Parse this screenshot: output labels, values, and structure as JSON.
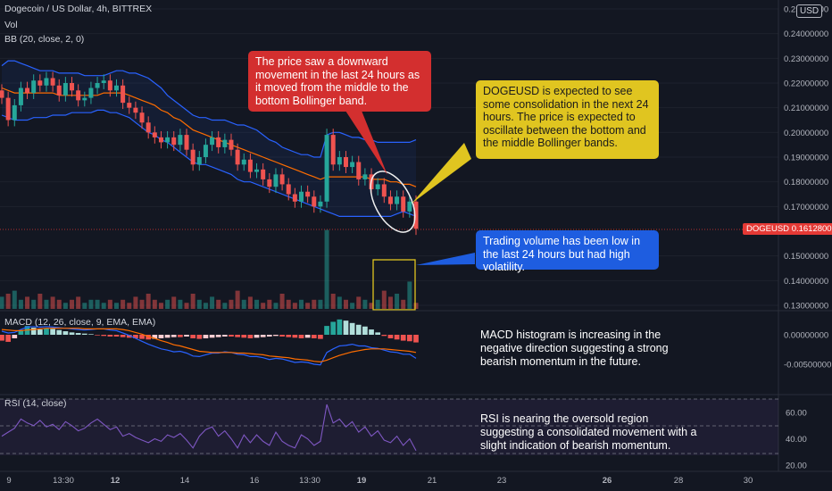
{
  "header": {
    "symbol_line": "Dogecoin / US Dollar, 4h, BITTREX",
    "vol_label": "Vol",
    "bb_label": "BB (20, close, 2, 0)",
    "macd_label": "MACD (12, 26, close, 9, EMA, EMA)",
    "rsi_label": "RSI (14, close)"
  },
  "currency_badge": "USD",
  "price_tag": {
    "symbol": "DOGEUSD",
    "value": "0.16128000"
  },
  "colors": {
    "background": "#131722",
    "up": "#26a69a",
    "down": "#ef5350",
    "bb_band": "#2962ff",
    "bb_basis": "#ff6d00",
    "macd_line": "#2962ff",
    "signal_line": "#ff6d00",
    "rsi_line": "#7e57c2",
    "callout_red": "#d32f2f",
    "callout_yellow": "#e0c520",
    "callout_blue": "#1e5de0"
  },
  "callouts": {
    "red": "The price saw a downward movement in the last 24 hours as it moved from the middle to the bottom Bollinger band.",
    "yellow": "DOGEUSD is expected to see some consolidation in the next 24 hours. The price is expected to oscillate between the bottom and the middle Bollinger bands.",
    "blue": "Trading volume has been low in the last 24 hours but had high volatility."
  },
  "notes": {
    "macd": "MACD histogram is increasing in the negative direction suggesting a strong bearish momentum in the future.",
    "rsi": "RSI is nearing the oversold region suggesting a consolidated movement with a slight indication of bearish momentum."
  },
  "chart_data": {
    "type": "line",
    "title": "Dogecoin / US Dollar, 4h, BITTREX",
    "price_axis": {
      "ticks": [
        "0.25000000",
        "0.24000000",
        "0.23000000",
        "0.22000000",
        "0.21000000",
        "0.20000000",
        "0.19000000",
        "0.18000000",
        "0.17000000",
        "0.15000000",
        "0.14000000",
        "0.13000000"
      ],
      "ylim": [
        0.13,
        0.25
      ],
      "last_price": 0.16128
    },
    "time_axis": [
      "9",
      "13:30",
      "12",
      "14",
      "16",
      "13:30",
      "19",
      "21",
      "23",
      "26",
      "28",
      "30"
    ],
    "price_close": [
      0.214,
      0.205,
      0.211,
      0.218,
      0.216,
      0.221,
      0.219,
      0.222,
      0.219,
      0.215,
      0.22,
      0.217,
      0.213,
      0.214,
      0.218,
      0.22,
      0.221,
      0.217,
      0.219,
      0.212,
      0.21,
      0.208,
      0.204,
      0.2,
      0.198,
      0.196,
      0.198,
      0.195,
      0.199,
      0.193,
      0.187,
      0.19,
      0.195,
      0.198,
      0.194,
      0.197,
      0.193,
      0.187,
      0.189,
      0.184,
      0.185,
      0.181,
      0.178,
      0.183,
      0.179,
      0.175,
      0.172,
      0.176,
      0.174,
      0.17,
      0.172,
      0.199,
      0.187,
      0.19,
      0.186,
      0.188,
      0.181,
      0.183,
      0.177,
      0.179,
      0.174,
      0.171,
      0.174,
      0.168,
      0.172,
      0.161
    ],
    "bb_upper": [
      0.227,
      0.229,
      0.229,
      0.228,
      0.227,
      0.226,
      0.225,
      0.225,
      0.225,
      0.224,
      0.224,
      0.224,
      0.224,
      0.223,
      0.223,
      0.223,
      0.223,
      0.224,
      0.225,
      0.225,
      0.224,
      0.224,
      0.223,
      0.222,
      0.22,
      0.218,
      0.215,
      0.213,
      0.211,
      0.209,
      0.207,
      0.206,
      0.206,
      0.205,
      0.205,
      0.205,
      0.204,
      0.203,
      0.203,
      0.202,
      0.201,
      0.199,
      0.197,
      0.196,
      0.194,
      0.193,
      0.192,
      0.191,
      0.191,
      0.19,
      0.19,
      0.199,
      0.2,
      0.2,
      0.199,
      0.198,
      0.198,
      0.197,
      0.197,
      0.196,
      0.196,
      0.196,
      0.196,
      0.196,
      0.196,
      0.197
    ],
    "bb_basis": [
      0.218,
      0.217,
      0.216,
      0.216,
      0.216,
      0.216,
      0.216,
      0.216,
      0.216,
      0.215,
      0.215,
      0.215,
      0.215,
      0.215,
      0.215,
      0.215,
      0.216,
      0.216,
      0.216,
      0.216,
      0.215,
      0.214,
      0.213,
      0.212,
      0.211,
      0.209,
      0.208,
      0.206,
      0.205,
      0.203,
      0.201,
      0.2,
      0.199,
      0.198,
      0.197,
      0.196,
      0.195,
      0.194,
      0.193,
      0.192,
      0.191,
      0.19,
      0.189,
      0.188,
      0.187,
      0.186,
      0.185,
      0.184,
      0.183,
      0.182,
      0.181,
      0.182,
      0.182,
      0.182,
      0.182,
      0.182,
      0.182,
      0.182,
      0.181,
      0.181,
      0.181,
      0.18,
      0.18,
      0.179,
      0.179,
      0.178
    ],
    "bb_lower": [
      0.207,
      0.206,
      0.205,
      0.205,
      0.205,
      0.206,
      0.206,
      0.206,
      0.207,
      0.207,
      0.207,
      0.208,
      0.208,
      0.208,
      0.208,
      0.209,
      0.209,
      0.208,
      0.208,
      0.207,
      0.206,
      0.204,
      0.202,
      0.2,
      0.199,
      0.197,
      0.196,
      0.194,
      0.192,
      0.19,
      0.188,
      0.187,
      0.187,
      0.186,
      0.185,
      0.184,
      0.183,
      0.181,
      0.18,
      0.18,
      0.179,
      0.178,
      0.177,
      0.176,
      0.175,
      0.174,
      0.173,
      0.172,
      0.171,
      0.17,
      0.169,
      0.168,
      0.167,
      0.166,
      0.166,
      0.166,
      0.166,
      0.166,
      0.166,
      0.166,
      0.166,
      0.166,
      0.167,
      0.168,
      0.167,
      0.166
    ],
    "volume": [
      0.4,
      0.5,
      0.6,
      0.3,
      0.4,
      0.3,
      0.5,
      0.3,
      0.4,
      0.3,
      0.2,
      0.3,
      0.4,
      0.2,
      0.3,
      0.3,
      0.2,
      0.3,
      0.2,
      0.3,
      0.2,
      0.4,
      0.3,
      0.5,
      0.3,
      0.2,
      0.3,
      0.4,
      0.3,
      0.2,
      0.5,
      0.3,
      0.2,
      0.4,
      0.3,
      0.2,
      0.3,
      0.6,
      0.3,
      0.4,
      0.3,
      0.2,
      0.3,
      0.2,
      0.5,
      0.3,
      0.2,
      0.3,
      0.2,
      0.3,
      0.3,
      2.6,
      0.5,
      0.4,
      0.3,
      0.2,
      0.4,
      0.3,
      0.2,
      0.3,
      0.6,
      0.4,
      0.5,
      0.3,
      0.9,
      0.2
    ],
    "macd_axis": {
      "ticks": [
        "0.00000000",
        "-0.00500000"
      ]
    },
    "macd_hist": [
      -1.0,
      -1.2,
      -0.6,
      0.8,
      1.5,
      1.2,
      0.9,
      1.1,
      1.0,
      0.8,
      0.6,
      0.4,
      0.3,
      0.2,
      0.1,
      -0.1,
      -0.2,
      -0.3,
      -0.3,
      -0.4,
      -0.5,
      -0.6,
      -0.7,
      -0.8,
      -0.7,
      -0.6,
      -0.5,
      -0.4,
      -0.4,
      -0.3,
      -0.6,
      -0.7,
      -0.6,
      -0.5,
      -0.4,
      -0.3,
      -0.3,
      -0.4,
      -0.5,
      -0.6,
      -0.5,
      -0.4,
      -0.3,
      -0.2,
      -0.3,
      -0.4,
      -0.5,
      -0.6,
      -0.5,
      -0.6,
      -0.7,
      1.5,
      2.2,
      2.6,
      2.4,
      2.0,
      1.7,
      1.4,
      0.9,
      0.4,
      -0.2,
      -0.6,
      -0.8,
      -1.0,
      -1.1,
      -1.3
    ],
    "macd_line": [
      0.6,
      0.3,
      0.4,
      0.9,
      1.3,
      1.4,
      1.3,
      1.4,
      1.3,
      1.2,
      1.1,
      1.0,
      0.9,
      0.8,
      0.9,
      1.0,
      1.0,
      0.8,
      0.7,
      0.3,
      -0.1,
      -0.6,
      -1.1,
      -1.6,
      -2.0,
      -2.4,
      -2.6,
      -2.9,
      -2.8,
      -3.1,
      -3.6,
      -3.7,
      -3.4,
      -3.1,
      -3.1,
      -2.9,
      -3.0,
      -3.3,
      -3.4,
      -3.7,
      -3.7,
      -3.9,
      -4.2,
      -4.0,
      -4.1,
      -4.4,
      -4.7,
      -4.6,
      -4.7,
      -5.0,
      -5.1,
      -3.0,
      -2.4,
      -1.9,
      -1.8,
      -1.6,
      -1.9,
      -1.9,
      -2.2,
      -2.3,
      -2.6,
      -2.9,
      -3.0,
      -3.3,
      -3.3,
      -4.0
    ],
    "macd_signal": [
      0.9,
      0.8,
      0.7,
      0.7,
      0.8,
      0.9,
      1.0,
      1.1,
      1.1,
      1.1,
      1.1,
      1.1,
      1.1,
      1.0,
      1.0,
      1.0,
      1.0,
      1.0,
      1.0,
      0.9,
      0.7,
      0.4,
      0.1,
      -0.3,
      -0.6,
      -1.0,
      -1.3,
      -1.7,
      -1.9,
      -2.2,
      -2.5,
      -2.8,
      -2.9,
      -3.0,
      -3.0,
      -3.0,
      -3.0,
      -3.1,
      -3.1,
      -3.2,
      -3.3,
      -3.4,
      -3.6,
      -3.7,
      -3.8,
      -3.9,
      -4.1,
      -4.2,
      -4.3,
      -4.5,
      -4.6,
      -4.3,
      -3.9,
      -3.5,
      -3.2,
      -2.9,
      -2.7,
      -2.5,
      -2.4,
      -2.4,
      -2.4,
      -2.5,
      -2.6,
      -2.7,
      -2.8,
      -3.0
    ],
    "rsi_axis": {
      "ticks": [
        "60.00",
        "40.00",
        "20.00"
      ],
      "ylim": [
        20,
        70
      ]
    },
    "rsi": [
      42,
      45,
      48,
      55,
      52,
      50,
      54,
      49,
      51,
      47,
      53,
      50,
      46,
      48,
      52,
      55,
      51,
      47,
      49,
      42,
      44,
      41,
      39,
      37,
      40,
      38,
      43,
      41,
      44,
      39,
      33,
      42,
      47,
      49,
      42,
      46,
      40,
      33,
      43,
      37,
      43,
      38,
      35,
      45,
      38,
      35,
      33,
      43,
      40,
      35,
      38,
      66,
      52,
      55,
      49,
      53,
      45,
      49,
      42,
      46,
      39,
      37,
      42,
      35,
      40,
      31
    ],
    "annotations": [
      "ellipse around last candles",
      "volume highlight box"
    ]
  }
}
